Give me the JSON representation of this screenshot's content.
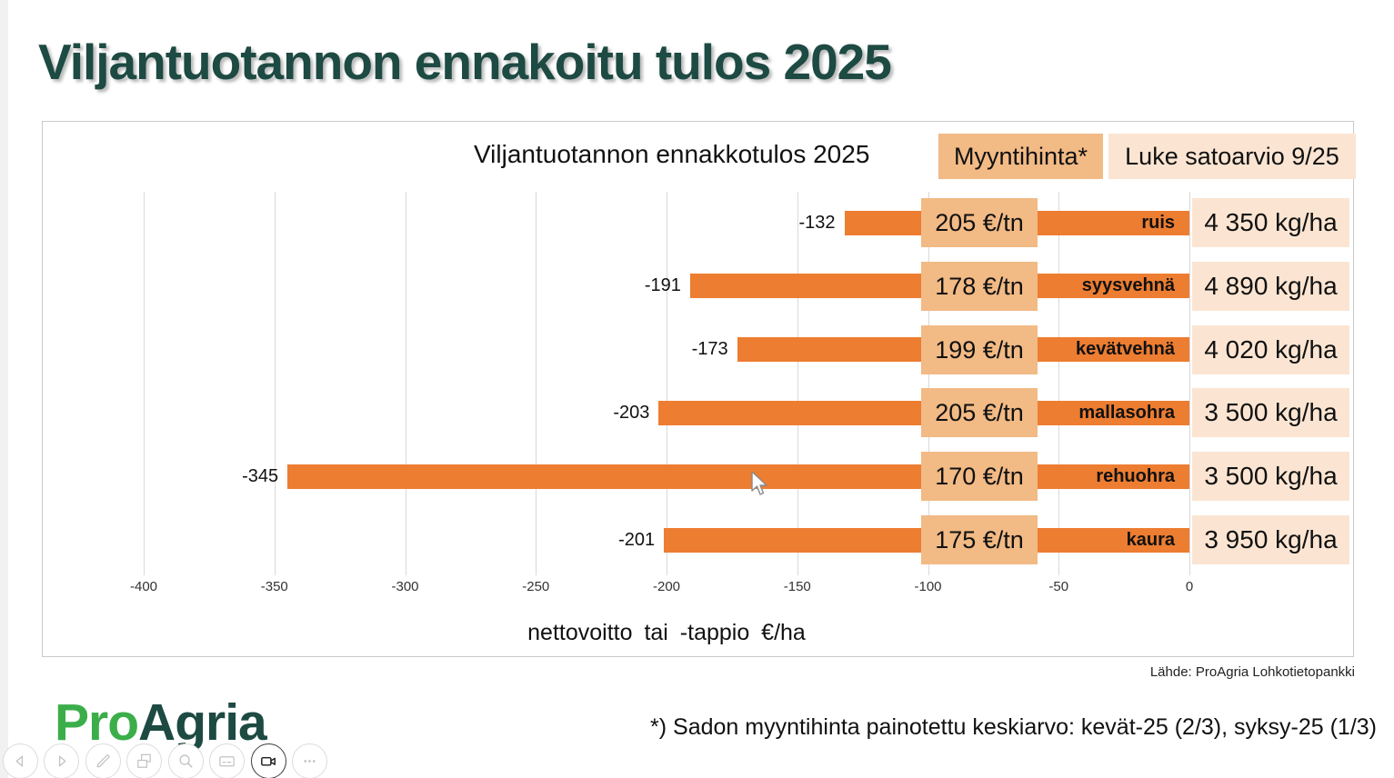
{
  "page_title": "Viljantuotannon ennakoitu tulos 2025",
  "chart": {
    "title": "Viljantuotannon ennakkotulos 2025",
    "legend_price_label": "Myyntihinta*",
    "legend_yield_label": "Luke satoarvio 9/25",
    "axis_title": "nettovoitto  tai -tappio €/ha"
  },
  "chart_data": {
    "type": "bar",
    "orientation": "horizontal",
    "title": "Viljantuotannon ennakkotulos 2025",
    "xlabel": "nettovoitto tai -tappio €/ha",
    "xlim": [
      -400,
      0
    ],
    "xticks": [
      -400,
      -350,
      -300,
      -250,
      -200,
      -150,
      -100,
      -50,
      0
    ],
    "grid": true,
    "bar_color": "#ed7d31",
    "categories": [
      "ruis",
      "syysvehnä",
      "kevätvehnä",
      "mallasohra",
      "rehuohra",
      "kaura"
    ],
    "series": [
      {
        "name": "nettovoitto tai -tappio €/ha",
        "values": [
          -132,
          -191,
          -173,
          -203,
          -345,
          -201
        ]
      },
      {
        "name": "Myyntihinta*",
        "values": [
          "205 €/tn",
          "178 €/tn",
          "199 €/tn",
          "205 €/tn",
          "170 €/tn",
          "175 €/tn"
        ]
      },
      {
        "name": "Luke satoarvio 9/25",
        "values": [
          "4 350 kg/ha",
          "4 890 kg/ha",
          "4 020 kg/ha",
          "3 500 kg/ha",
          "3 500 kg/ha",
          "3 950 kg/ha"
        ]
      }
    ]
  },
  "source": "Lähde: ProAgria Lohkotietopankki",
  "footnote": "*) Sadon myyntihinta painotettu keskiarvo: kevät-25 (2/3), syksy-25 (1/3)",
  "logo": {
    "part1": "Pro",
    "part2": "Agria"
  },
  "colors": {
    "title_green": "#1d4a42",
    "bar_orange": "#ed7d31",
    "price_box_bg": "#f2ba85",
    "yield_box_bg": "#fbe5d2",
    "logo_green": "#3bae4a",
    "logo_dark_green": "#1d4a42"
  },
  "toolbar": {
    "items": [
      {
        "icon": "previous-slide-icon"
      },
      {
        "icon": "next-slide-icon"
      },
      {
        "icon": "pen-icon"
      },
      {
        "icon": "all-slides-icon"
      },
      {
        "icon": "zoom-icon"
      },
      {
        "icon": "captions-icon"
      },
      {
        "icon": "camera-icon",
        "active": true
      },
      {
        "icon": "more-options-icon"
      }
    ]
  }
}
